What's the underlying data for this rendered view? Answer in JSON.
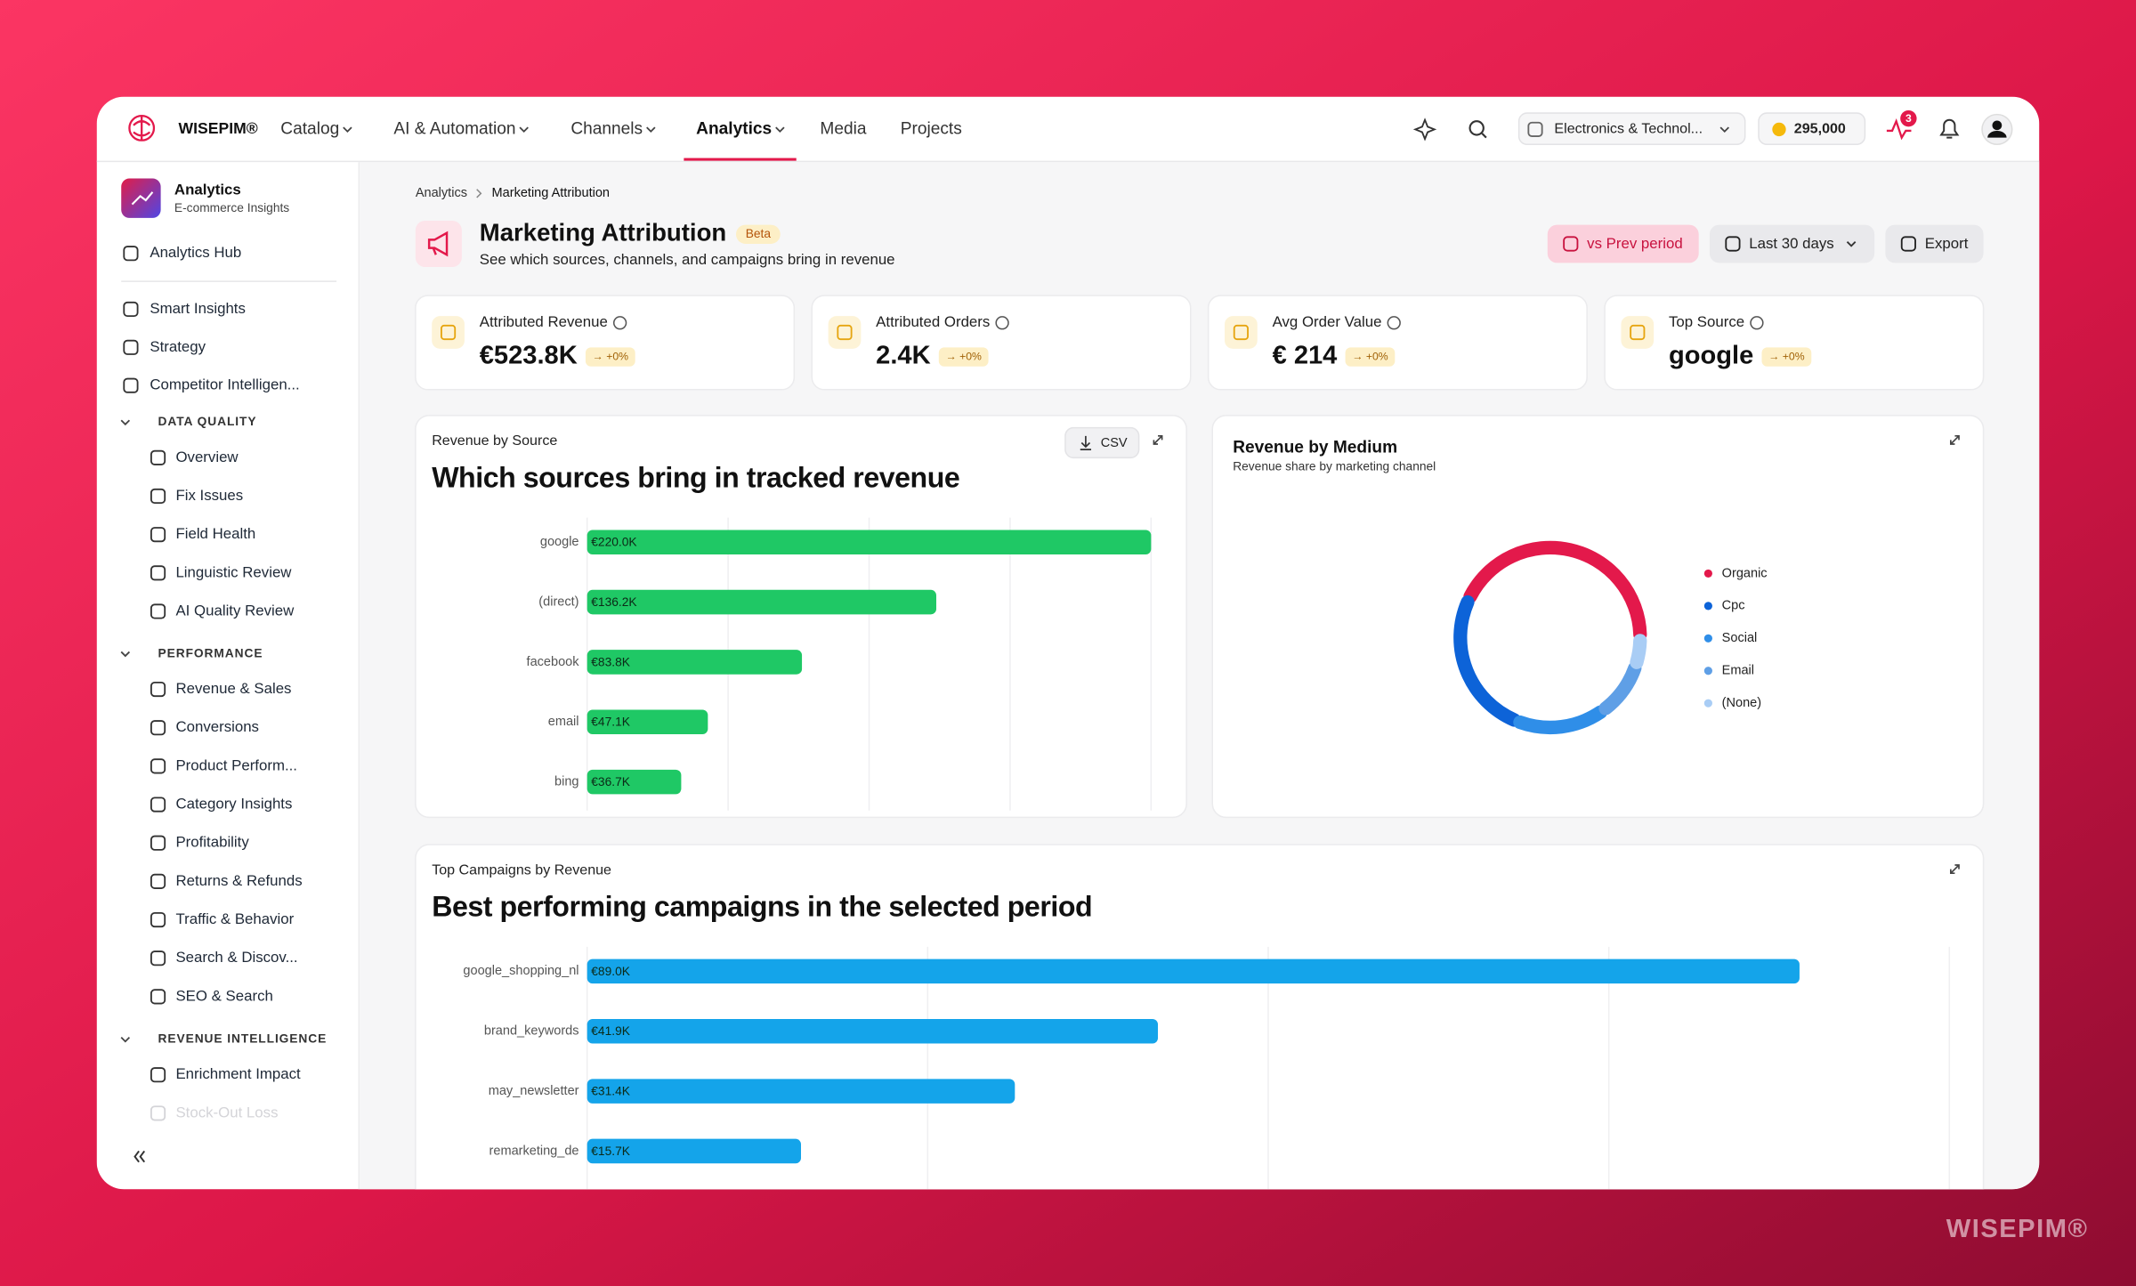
{
  "brand": "WISEPIM®",
  "nav": [
    {
      "label": "Catalog",
      "dropdown": true
    },
    {
      "label": "AI & Automation",
      "dropdown": true
    },
    {
      "label": "Channels",
      "dropdown": true
    },
    {
      "label": "Analytics",
      "dropdown": true,
      "active": true
    },
    {
      "label": "Media"
    },
    {
      "label": "Projects"
    }
  ],
  "workspace": "Electronics & Technol...",
  "credits": "295,000",
  "notifications": 3,
  "sidebar": {
    "title": "Analytics",
    "subtitle": "E-commerce Insights",
    "hub": "Analytics Hub",
    "items": [
      "Smart Insights",
      "Strategy",
      "Competitor Intelligen..."
    ],
    "sections": [
      {
        "title": "DATA QUALITY",
        "items": [
          "Overview",
          "Fix Issues",
          "Field Health",
          "Linguistic Review",
          "AI Quality Review"
        ]
      },
      {
        "title": "PERFORMANCE",
        "items": [
          "Revenue & Sales",
          "Conversions",
          "Product Perform...",
          "Category Insights",
          "Profitability",
          "Returns & Refunds",
          "Traffic & Behavior",
          "Search & Discov...",
          "SEO & Search"
        ]
      },
      {
        "title": "REVENUE INTELLIGENCE",
        "items": [
          "Enrichment Impact",
          "Stock-Out Loss"
        ]
      }
    ]
  },
  "breadcrumb": [
    "Analytics",
    "Marketing Attribution"
  ],
  "page": {
    "title": "Marketing Attribution",
    "badge": "Beta",
    "subtitle": "See which sources, channels, and campaigns bring in revenue",
    "actions": [
      "vs Prev period",
      "Last 30 days",
      "Export"
    ]
  },
  "kpis": [
    {
      "label": "Attributed Revenue",
      "value": "€523.8K",
      "change": "→ +0%"
    },
    {
      "label": "Attributed Orders",
      "value": "2.4K",
      "change": "→ +0%"
    },
    {
      "label": "Avg Order Value",
      "value": "€ 214",
      "change": "→ +0%"
    },
    {
      "label": "Top Source",
      "value": "google",
      "change": "→ +0%"
    }
  ],
  "watermark": "WISEPIM®",
  "chart_data": [
    {
      "type": "bar",
      "horizontal": true,
      "label": "Revenue by Source",
      "title": "Which sources bring in tracked revenue",
      "button": "CSV",
      "categories": [
        "google",
        "(direct)",
        "facebook",
        "email",
        "bing"
      ],
      "values": [
        220000,
        136200,
        83800,
        47100,
        36700
      ],
      "value_labels": [
        "€220.0K",
        "€136.2K",
        "€83.8K",
        "€47.1K",
        "€36.7K"
      ],
      "color": "#1fc865",
      "xlim": [
        0,
        220000
      ],
      "xticks": [
        0,
        55000,
        110000,
        165000,
        220000
      ],
      "grid": true
    },
    {
      "type": "pie",
      "donut": true,
      "title": "Revenue by Medium",
      "subtitle": "Revenue share by marketing channel",
      "categories": [
        "Organic",
        "Cpc",
        "Social",
        "Email",
        "(None)"
      ],
      "values": [
        43,
        26,
        16,
        10,
        5
      ],
      "colors": [
        "#e3194b",
        "#0d63d8",
        "#2f8ee8",
        "#5f9fe6",
        "#a9cdf5"
      ],
      "legend": "right"
    },
    {
      "type": "bar",
      "horizontal": true,
      "label": "Top Campaigns by Revenue",
      "title": "Best performing campaigns in the selected period",
      "categories": [
        "google_shopping_nl",
        "brand_keywords",
        "may_newsletter",
        "remarketing_de"
      ],
      "values": [
        89000,
        41900,
        31400,
        15700
      ],
      "value_labels": [
        "€89.0K",
        "€41.9K",
        "€31.4K",
        "€15.7K"
      ],
      "color": "#14a4ea",
      "xlim": [
        0,
        100000
      ],
      "xticks": [
        0,
        25000,
        50000,
        75000,
        100000
      ],
      "grid": true
    }
  ]
}
